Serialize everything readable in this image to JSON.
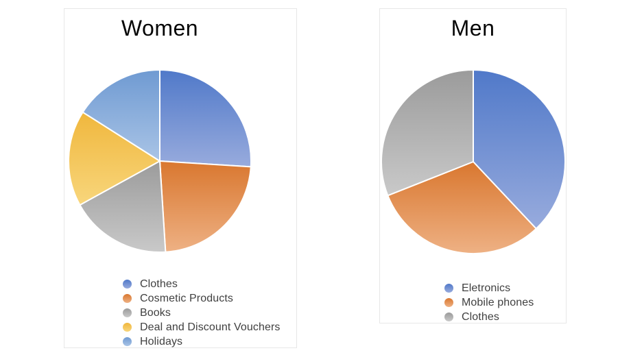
{
  "page": {
    "background_color": "#ffffff",
    "card_border_color": "#e7e7e7"
  },
  "chart_data": [
    {
      "type": "pie",
      "title": "Women",
      "labels": [
        "Clothes",
        "Cosmetic Products",
        "Books",
        "Deal and Discount Vouchers",
        "Holidays"
      ],
      "values": [
        26,
        23,
        18,
        17,
        16
      ],
      "colors": [
        {
          "base": "#5079c9",
          "light": "#98abdd"
        },
        {
          "base": "#d9772f",
          "light": "#eeb184"
        },
        {
          "base": "#9b9b9b",
          "light": "#c9c9c9"
        },
        {
          "base": "#f0b73d",
          "light": "#f8d67c"
        },
        {
          "base": "#6f9ad2",
          "light": "#a9c4e6"
        }
      ],
      "start_angle_deg": 0,
      "direction": "clockwise",
      "legend_position": "bottom",
      "slice_separator_color": "#ffffff"
    },
    {
      "type": "pie",
      "title": "Men",
      "labels": [
        "Eletronics",
        "Mobile phones",
        "Clothes"
      ],
      "values": [
        38,
        31,
        31
      ],
      "colors": [
        {
          "base": "#5079c9",
          "light": "#98abdd"
        },
        {
          "base": "#d9772f",
          "light": "#eeb184"
        },
        {
          "base": "#9b9b9b",
          "light": "#c9c9c9"
        }
      ],
      "start_angle_deg": 0,
      "direction": "clockwise",
      "legend_position": "bottom",
      "slice_separator_color": "#ffffff"
    }
  ]
}
